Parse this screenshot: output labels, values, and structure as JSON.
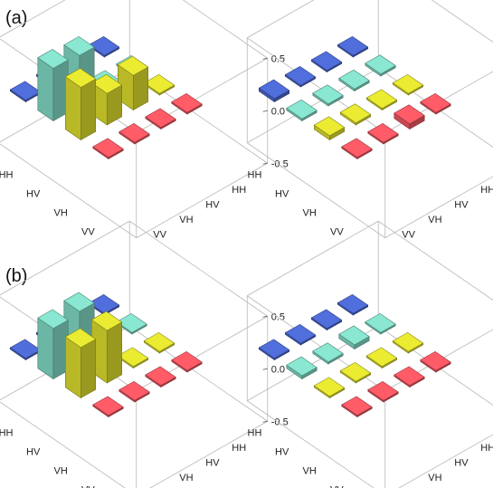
{
  "panel_labels": [
    "(a)",
    "(b)"
  ],
  "colors": {
    "HH": "#4a66cc",
    "HV": "#7fd6c2",
    "VH": "#dada2e",
    "VV": "#ef5560",
    "frame": "#b8b8b8",
    "background": "#ffffff"
  },
  "chart_data": [
    {
      "type": "bar3d",
      "panel": "(a)",
      "position": "left",
      "row_labels": [
        "HH",
        "HV",
        "VH",
        "VV"
      ],
      "col_labels": [
        "HH",
        "HV",
        "VH",
        "VV"
      ],
      "zlim": [
        -0.5,
        0.5
      ],
      "z_ticks": [
        "0.5",
        "0.0",
        "-0.5"
      ],
      "values": [
        [
          0.0,
          0.5,
          0.5,
          0.0
        ],
        [
          0.0,
          0.48,
          0.3,
          0.0
        ],
        [
          0.0,
          0.0,
          0.33,
          0.0
        ],
        [
          0.0,
          0.0,
          0.0,
          0.0
        ]
      ]
    },
    {
      "type": "bar3d",
      "panel": "(a)",
      "position": "right",
      "row_labels": [
        "HH",
        "HV",
        "VH",
        "VV"
      ],
      "col_labels": [
        "HH",
        "HV",
        "VH",
        "VV"
      ],
      "zlim": [
        -0.5,
        0.5
      ],
      "z_ticks": [
        "0.5",
        "0.0",
        "-0.5"
      ],
      "values": [
        [
          0.03,
          0.02,
          0.04,
          0.0
        ],
        [
          0.0,
          0.02,
          0.02,
          0.0
        ],
        [
          0.0,
          0.02,
          0.0,
          0.05
        ],
        [
          0.0,
          0.02,
          0.0,
          0.0
        ]
      ]
    },
    {
      "type": "bar3d",
      "panel": "(b)",
      "position": "left",
      "row_labels": [
        "HH",
        "HV",
        "VH",
        "VV"
      ],
      "col_labels": [
        "HH",
        "HV",
        "VH",
        "VV"
      ],
      "zlim": [
        -0.5,
        0.5
      ],
      "z_ticks": [
        "0.5",
        "0.0",
        "-0.5"
      ],
      "values": [
        [
          0.0,
          0.48,
          0.48,
          0.0
        ],
        [
          0.0,
          0.5,
          0.5,
          0.0
        ],
        [
          0.0,
          0.0,
          0.0,
          0.0
        ],
        [
          0.0,
          0.0,
          0.0,
          0.0
        ]
      ]
    },
    {
      "type": "bar3d",
      "panel": "(b)",
      "position": "right",
      "row_labels": [
        "HH",
        "HV",
        "VH",
        "VV"
      ],
      "col_labels": [
        "HH",
        "HV",
        "VH",
        "VV"
      ],
      "zlim": [
        -0.5,
        0.5
      ],
      "z_ticks": [
        "0.5",
        "0.0",
        "-0.5"
      ],
      "values": [
        [
          0.0,
          0.03,
          0.0,
          0.0
        ],
        [
          0.0,
          0.02,
          0.0,
          0.0
        ],
        [
          0.0,
          0.04,
          0.0,
          0.0
        ],
        [
          0.0,
          0.0,
          0.0,
          0.0
        ]
      ]
    }
  ]
}
